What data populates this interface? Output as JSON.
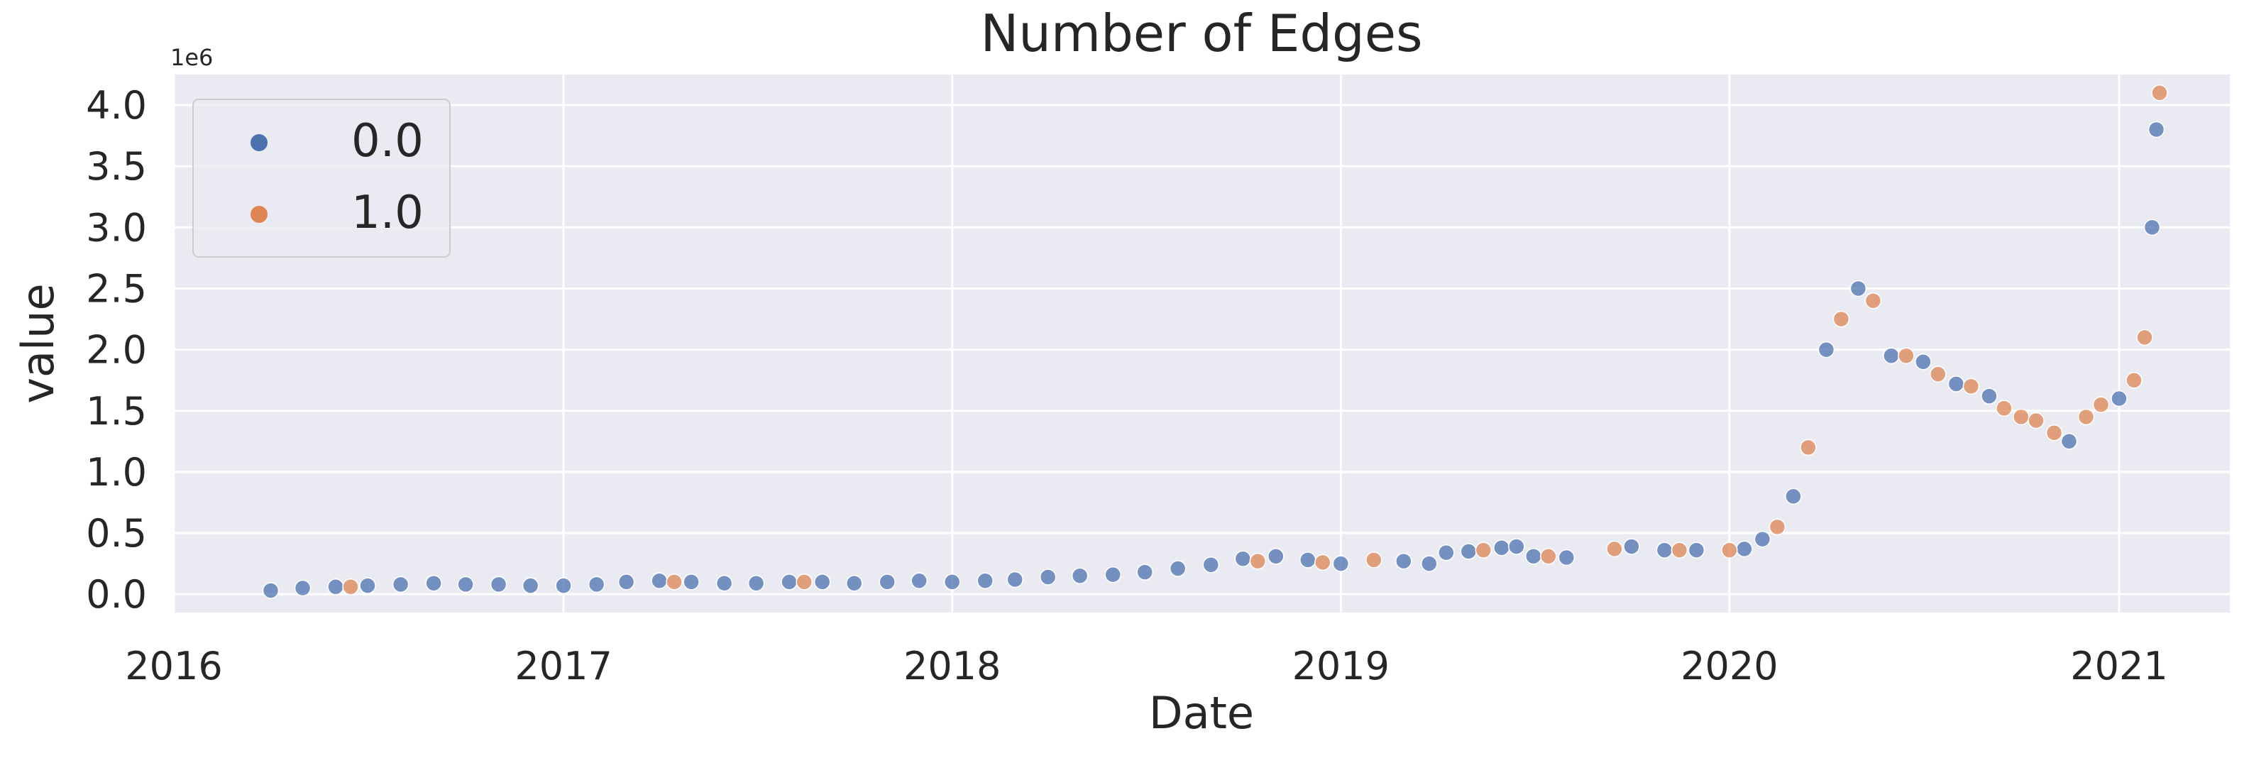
{
  "chart_data": {
    "type": "scatter",
    "title": "Number of Edges",
    "xlabel": "Date",
    "ylabel": "value",
    "y_offset_label": "1e6",
    "y_multiplier": 1000000,
    "xlim": [
      "2016-01-01",
      "2021-04-15"
    ],
    "ylim": [
      -0.15,
      4.25
    ],
    "x_ticks": [
      {
        "date": "2016-01-01",
        "label": "2016"
      },
      {
        "date": "2017-01-01",
        "label": "2017"
      },
      {
        "date": "2018-01-01",
        "label": "2018"
      },
      {
        "date": "2019-01-01",
        "label": "2019"
      },
      {
        "date": "2020-01-01",
        "label": "2020"
      },
      {
        "date": "2021-01-01",
        "label": "2021"
      }
    ],
    "y_ticks": [
      {
        "value": 0.0,
        "label": "0.0"
      },
      {
        "value": 0.5,
        "label": "0.5"
      },
      {
        "value": 1.0,
        "label": "1.0"
      },
      {
        "value": 1.5,
        "label": "1.5"
      },
      {
        "value": 2.0,
        "label": "2.0"
      },
      {
        "value": 2.5,
        "label": "2.5"
      },
      {
        "value": 3.0,
        "label": "3.0"
      },
      {
        "value": 3.5,
        "label": "3.5"
      },
      {
        "value": 4.0,
        "label": "4.0"
      }
    ],
    "grid": true,
    "legend_placement": "top-left",
    "legend": [
      {
        "label": "0.0",
        "color": "#4c72b0"
      },
      {
        "label": "1.0",
        "color": "#dd8452"
      }
    ],
    "series": [
      {
        "name": "0.0",
        "color": "#4c72b0",
        "points": [
          [
            "2016-04-01",
            0.03
          ],
          [
            "2016-05-01",
            0.05
          ],
          [
            "2016-06-01",
            0.06
          ],
          [
            "2016-07-01",
            0.07
          ],
          [
            "2016-08-01",
            0.08
          ],
          [
            "2016-09-01",
            0.09
          ],
          [
            "2016-10-01",
            0.08
          ],
          [
            "2016-11-01",
            0.08
          ],
          [
            "2016-12-01",
            0.07
          ],
          [
            "2017-01-01",
            0.07
          ],
          [
            "2017-02-01",
            0.08
          ],
          [
            "2017-03-01",
            0.1
          ],
          [
            "2017-04-01",
            0.11
          ],
          [
            "2017-05-01",
            0.1
          ],
          [
            "2017-06-01",
            0.09
          ],
          [
            "2017-07-01",
            0.09
          ],
          [
            "2017-08-01",
            0.1
          ],
          [
            "2017-09-01",
            0.1
          ],
          [
            "2017-10-01",
            0.09
          ],
          [
            "2017-11-01",
            0.1
          ],
          [
            "2017-12-01",
            0.11
          ],
          [
            "2018-01-01",
            0.1
          ],
          [
            "2018-02-01",
            0.11
          ],
          [
            "2018-03-01",
            0.12
          ],
          [
            "2018-04-01",
            0.14
          ],
          [
            "2018-05-01",
            0.15
          ],
          [
            "2018-06-01",
            0.16
          ],
          [
            "2018-07-01",
            0.18
          ],
          [
            "2018-08-01",
            0.21
          ],
          [
            "2018-09-01",
            0.24
          ],
          [
            "2018-10-01",
            0.29
          ],
          [
            "2018-11-01",
            0.31
          ],
          [
            "2018-12-01",
            0.28
          ],
          [
            "2019-01-01",
            0.25
          ],
          [
            "2019-03-01",
            0.27
          ],
          [
            "2019-03-25",
            0.25
          ],
          [
            "2019-04-10",
            0.34
          ],
          [
            "2019-05-01",
            0.35
          ],
          [
            "2019-06-01",
            0.38
          ],
          [
            "2019-06-15",
            0.39
          ],
          [
            "2019-07-01",
            0.31
          ],
          [
            "2019-08-01",
            0.3
          ],
          [
            "2019-10-01",
            0.39
          ],
          [
            "2019-11-01",
            0.36
          ],
          [
            "2019-12-01",
            0.36
          ],
          [
            "2020-01-15",
            0.37
          ],
          [
            "2020-02-01",
            0.45
          ],
          [
            "2020-03-01",
            0.8
          ],
          [
            "2020-04-01",
            2.0
          ],
          [
            "2020-05-01",
            2.5
          ],
          [
            "2020-06-01",
            1.95
          ],
          [
            "2020-07-01",
            1.9
          ],
          [
            "2020-08-01",
            1.72
          ],
          [
            "2020-09-01",
            1.62
          ],
          [
            "2020-11-15",
            1.25
          ],
          [
            "2021-01-01",
            1.6
          ],
          [
            "2021-02-01",
            3.0
          ],
          [
            "2021-02-05",
            3.8
          ]
        ]
      },
      {
        "name": "1.0",
        "color": "#dd8452",
        "points": [
          [
            "2016-06-15",
            0.06
          ],
          [
            "2017-04-15",
            0.1
          ],
          [
            "2017-08-15",
            0.1
          ],
          [
            "2018-10-15",
            0.27
          ],
          [
            "2018-12-15",
            0.26
          ],
          [
            "2019-02-01",
            0.28
          ],
          [
            "2019-05-15",
            0.36
          ],
          [
            "2019-07-15",
            0.31
          ],
          [
            "2019-09-15",
            0.37
          ],
          [
            "2019-11-15",
            0.36
          ],
          [
            "2020-01-01",
            0.36
          ],
          [
            "2020-02-15",
            0.55
          ],
          [
            "2020-03-15",
            1.2
          ],
          [
            "2020-04-15",
            2.25
          ],
          [
            "2020-05-15",
            2.4
          ],
          [
            "2020-06-15",
            1.95
          ],
          [
            "2020-07-15",
            1.8
          ],
          [
            "2020-08-15",
            1.7
          ],
          [
            "2020-09-15",
            1.52
          ],
          [
            "2020-10-01",
            1.45
          ],
          [
            "2020-10-15",
            1.42
          ],
          [
            "2020-11-01",
            1.32
          ],
          [
            "2020-12-01",
            1.45
          ],
          [
            "2020-12-15",
            1.55
          ],
          [
            "2021-01-15",
            1.75
          ],
          [
            "2021-01-25",
            2.1
          ],
          [
            "2021-02-08",
            4.1
          ]
        ]
      }
    ]
  }
}
